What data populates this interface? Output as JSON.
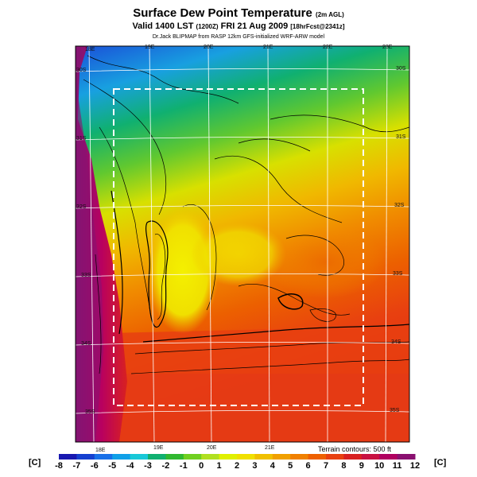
{
  "title": {
    "main": "Surface Dew Point Temperature",
    "main_note": "(2m AGL)",
    "valid": "Valid 1400 LST",
    "valid_zulu": "(1200Z)",
    "valid_date": "FRI 21 Aug 2009",
    "valid_note": "[18hrFcst@2341z]",
    "credit": "Dr.Jack BLIPMAP from RASP 12km GFS-initialized WRF-ARW model"
  },
  "map": {
    "top_lon_labels": [
      "18E",
      "19E",
      "20E",
      "21E",
      "22E",
      "23E"
    ],
    "bottom_lon_labels": [
      "18E",
      "19E",
      "20E",
      "21E"
    ],
    "left_lat_labels": [
      "30S",
      "31S",
      "32S",
      "33S",
      "34S",
      "35S"
    ],
    "right_lat_labels": [
      "30S",
      "31S",
      "32S",
      "33S",
      "34S",
      "35S"
    ],
    "terrain_note": "Terrain contours: 500 ft",
    "colors": {
      "sea": "#b80060",
      "land_north": "#1560d8",
      "land_mid": "#f0d800",
      "land_south": "#e84010",
      "grid": "#ffffff",
      "dashed_box": "#ffffff",
      "contours": "#000000"
    }
  },
  "colorbar": {
    "unit_label": "[C]",
    "ticks": [
      "-8",
      "-7",
      "-6",
      "-5",
      "-4",
      "-3",
      "-2",
      "-1",
      "0",
      "1",
      "2",
      "3",
      "4",
      "5",
      "6",
      "7",
      "8",
      "9",
      "10",
      "11",
      "12"
    ],
    "colors": [
      "#1818b0",
      "#1540d0",
      "#1870e8",
      "#10a0e8",
      "#18c8d8",
      "#10b070",
      "#30b830",
      "#70d020",
      "#b0e020",
      "#e0f000",
      "#f0e000",
      "#f0c000",
      "#f0a000",
      "#f08000",
      "#ee6000",
      "#e84010",
      "#d82020",
      "#c81040",
      "#b00060",
      "#8a1070"
    ]
  }
}
